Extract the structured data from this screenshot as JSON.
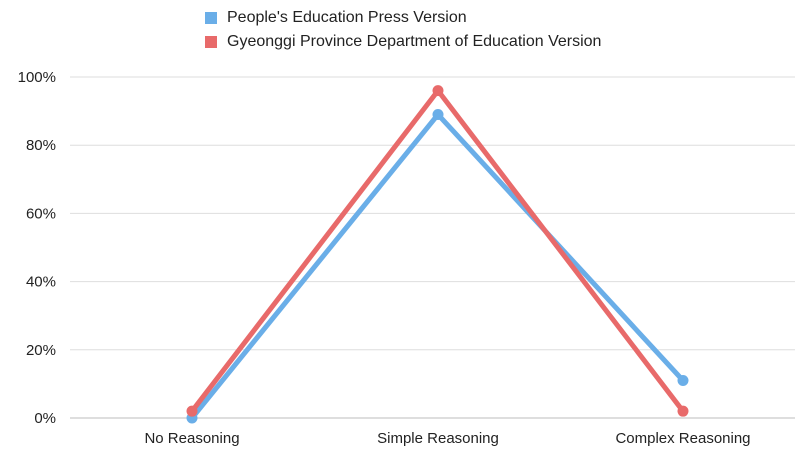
{
  "chart_data": {
    "type": "line",
    "categories": [
      "No Reasoning",
      "Simple Reasoning",
      "Complex Reasoning"
    ],
    "series": [
      {
        "name": "People's Education Press Version",
        "color": "#6aaee8",
        "values": [
          0,
          89,
          11
        ]
      },
      {
        "name": "Gyeonggi Province Department of Education Version",
        "color": "#e86a6a",
        "values": [
          2,
          96,
          2
        ]
      }
    ],
    "y_ticks": [
      "0%",
      "20%",
      "40%",
      "60%",
      "80%",
      "100%"
    ],
    "ylim": [
      0,
      100
    ],
    "grid": true,
    "legend_position": "top"
  }
}
